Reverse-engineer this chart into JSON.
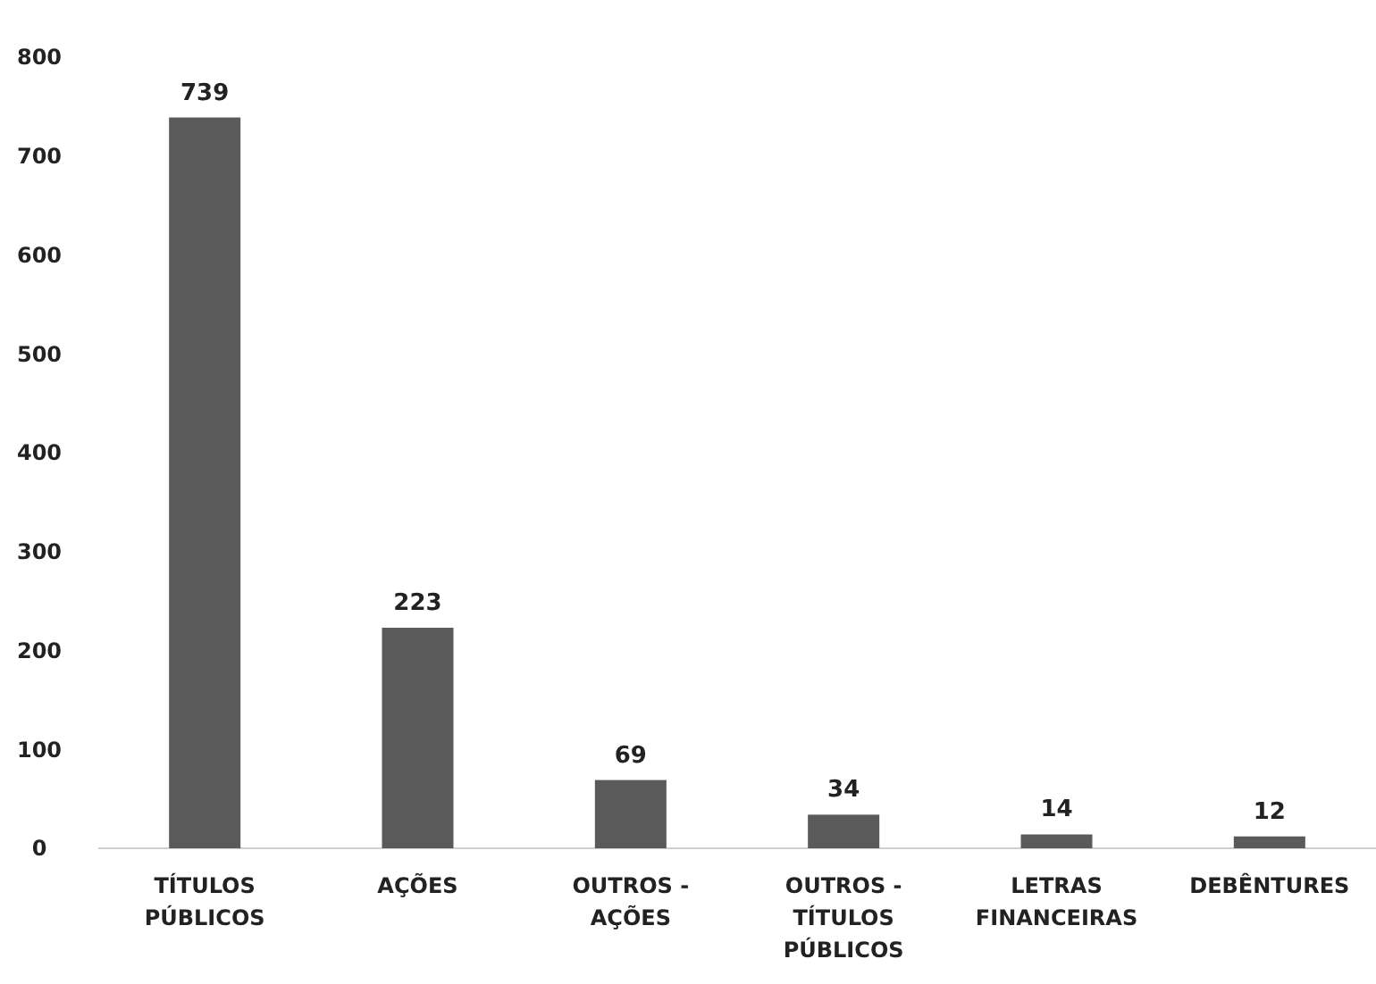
{
  "chart_data": {
    "type": "bar",
    "categories": [
      "TÍTULOS PÚBLICOS",
      "AÇÕES",
      "OUTROS - AÇÕES",
      "OUTROS - TÍTULOS PÚBLICOS",
      "LETRAS FINANCEIRAS",
      "DEBÊNTURES"
    ],
    "values": [
      739,
      223,
      69,
      34,
      14,
      12
    ],
    "color": "#5a5a5a",
    "ylim": [
      0,
      800
    ],
    "yticks": [
      0,
      100,
      200,
      300,
      400,
      500,
      600,
      700,
      800
    ],
    "data_labels": true,
    "grid": false
  }
}
